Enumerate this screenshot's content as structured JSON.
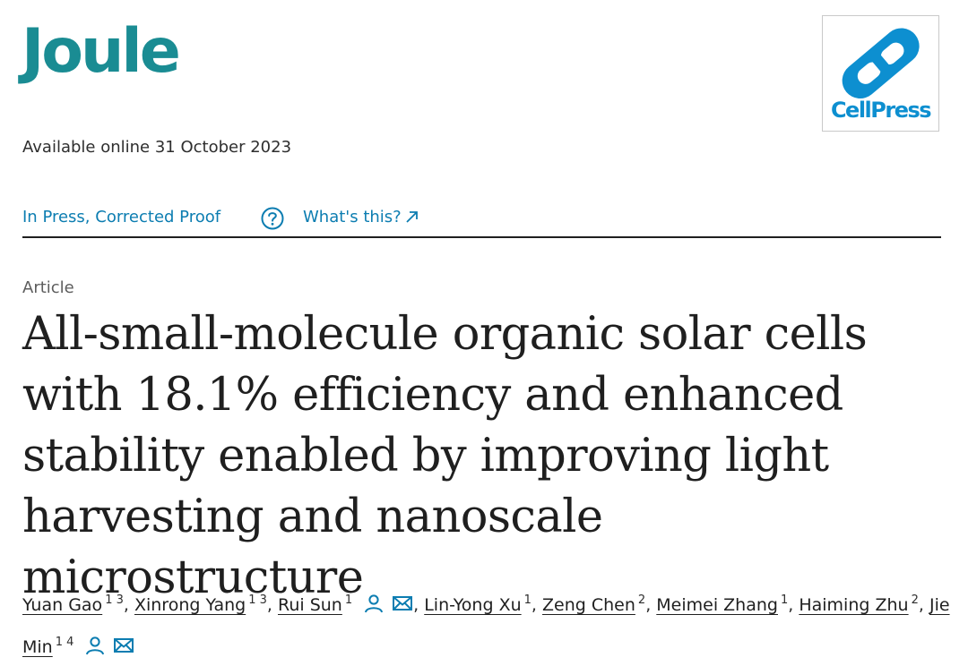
{
  "journal": {
    "name": "Joule"
  },
  "publisher": {
    "name": "CellPress",
    "colors": {
      "brand": "#0d8fd0"
    }
  },
  "available_online": "Available online 31 October 2023",
  "status": {
    "label": "In Press, Corrected Proof",
    "help_icon": "question-circle-icon",
    "whats_this": "What's this?",
    "external_icon": "arrow-up-right-icon"
  },
  "article": {
    "type": "Article",
    "title": "All-small-molecule organic solar cells with 18.1% efficiency and enhanced stability enabled by improving light harvesting and nanoscale microstructure"
  },
  "authors": [
    {
      "name": "Yuan Gao",
      "aff": "1 3"
    },
    {
      "name": "Xinrong Yang",
      "aff": "1 3"
    },
    {
      "name": "Rui Sun",
      "aff": "1"
    },
    {
      "name": "Lin-Yong Xu",
      "aff": "1"
    },
    {
      "name": "Zeng Chen",
      "aff": "2"
    },
    {
      "name": "Meimei Zhang",
      "aff": "1"
    },
    {
      "name": "Haiming Zhu",
      "aff": "2"
    },
    {
      "name": "Jie Min",
      "aff": "1 4"
    }
  ],
  "colors": {
    "link": "#0c7db1",
    "journal": "#1a8c93",
    "text": "#1f1f1f"
  }
}
